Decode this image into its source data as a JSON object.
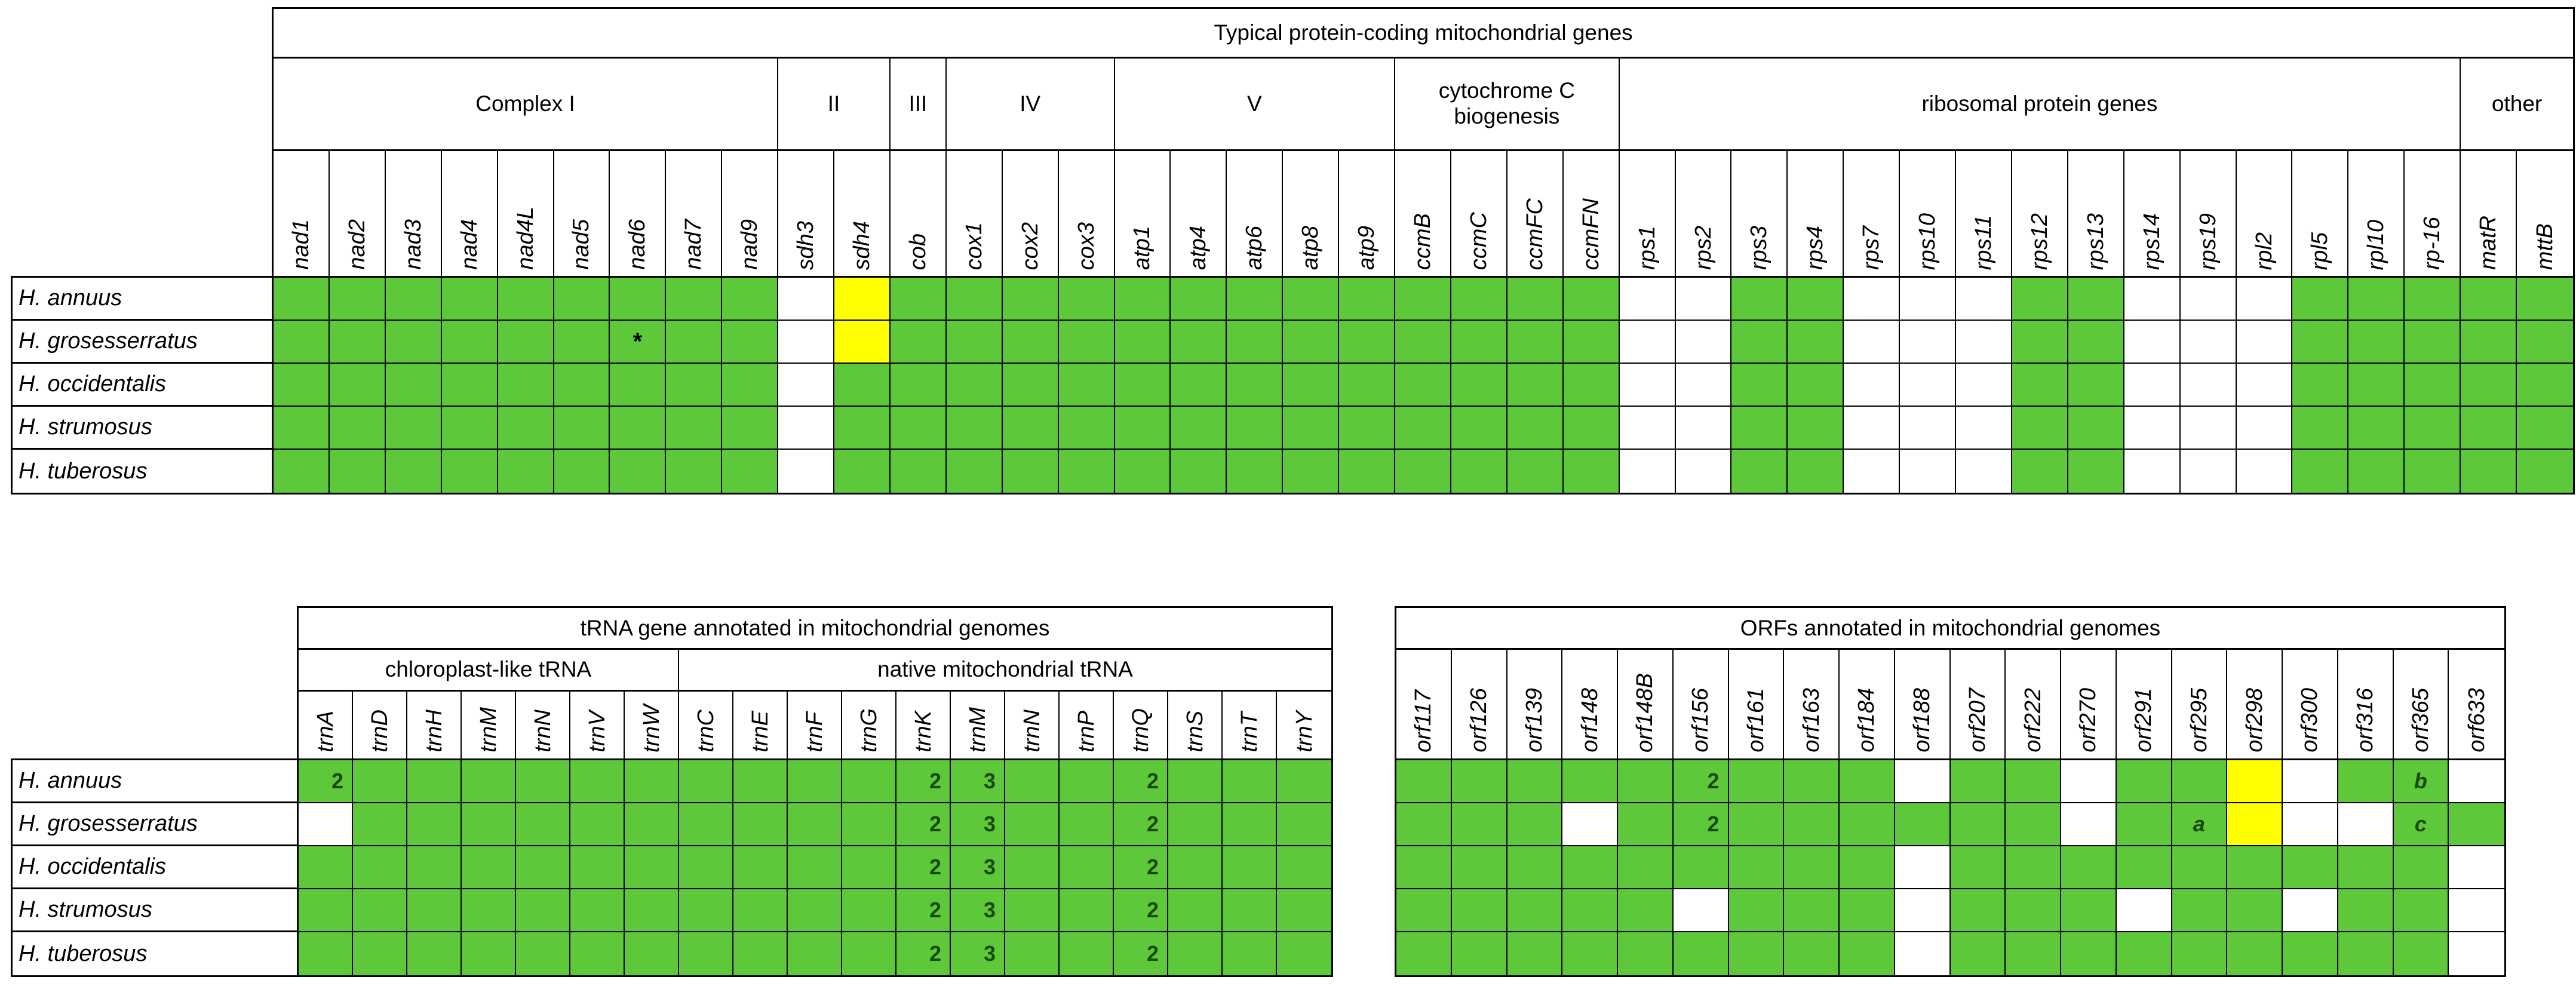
{
  "colors": {
    "present_green": "#5dc83a",
    "highlight_yellow": "#ffff00",
    "absent_white": "#ffffff",
    "grid_border": "#000000",
    "cell_text": "#1a4a08"
  },
  "species": [
    "H. annuus",
    "H. grosesserratus",
    "H. occidentalis",
    "H. strumosus",
    "H. tuberosus"
  ],
  "cell_legend": {
    "G": "gene present (green fill)",
    "W": "gene absent (white fill)",
    "Y": "highlighted presence (yellow fill)",
    "G:n": "present with copy number n shown in cell",
    "G:letter": "present with footnote letter shown in cell",
    "G:*": "present with asterisk annotation"
  },
  "chart_data": [
    {
      "type": "heatmap",
      "title": "Typical protein-coding mitochondrial genes",
      "row_labels": [
        "H. annuus",
        "H. grosesserratus",
        "H. occidentalis",
        "H. strumosus",
        "H. tuberosus"
      ],
      "column_groups": [
        {
          "label": "Complex I",
          "columns": [
            "nad1",
            "nad2",
            "nad3",
            "nad4",
            "nad4L",
            "nad5",
            "nad6",
            "nad7",
            "nad9"
          ]
        },
        {
          "label": "II",
          "columns": [
            "sdh3",
            "sdh4"
          ]
        },
        {
          "label": "III",
          "columns": [
            "cob"
          ]
        },
        {
          "label": "IV",
          "columns": [
            "cox1",
            "cox2",
            "cox3"
          ]
        },
        {
          "label": "V",
          "columns": [
            "atp1",
            "atp4",
            "atp6",
            "atp8",
            "atp9"
          ]
        },
        {
          "label": "cytochrome C biogenesis",
          "columns": [
            "ccmB",
            "ccmC",
            "ccmFC",
            "ccmFN"
          ]
        },
        {
          "label": "ribosomal protein genes",
          "columns": [
            "rps1",
            "rps2",
            "rps3",
            "rps4",
            "rps7",
            "rps10",
            "rps11",
            "rps12",
            "rps13",
            "rps14",
            "rps19",
            "rpl2",
            "rpl5",
            "rpl10",
            "rp-16"
          ]
        },
        {
          "label": "other",
          "columns": [
            "matR",
            "mttB"
          ]
        }
      ],
      "values": [
        [
          "G",
          "G",
          "G",
          "G",
          "G",
          "G",
          "G",
          "G",
          "G",
          "W",
          "Y",
          "G",
          "G",
          "G",
          "G",
          "G",
          "G",
          "G",
          "G",
          "G",
          "G",
          "G",
          "G",
          "G",
          "W",
          "W",
          "G",
          "G",
          "W",
          "W",
          "W",
          "G",
          "G",
          "W",
          "W",
          "W",
          "G",
          "G",
          "G",
          "G",
          "G"
        ],
        [
          "G",
          "G",
          "G",
          "G",
          "G",
          "G",
          "G:*",
          "G",
          "G",
          "W",
          "Y",
          "G",
          "G",
          "G",
          "G",
          "G",
          "G",
          "G",
          "G",
          "G",
          "G",
          "G",
          "G",
          "G",
          "W",
          "W",
          "G",
          "G",
          "W",
          "W",
          "W",
          "G",
          "G",
          "W",
          "W",
          "W",
          "G",
          "G",
          "G",
          "G",
          "G"
        ],
        [
          "G",
          "G",
          "G",
          "G",
          "G",
          "G",
          "G",
          "G",
          "G",
          "W",
          "G",
          "G",
          "G",
          "G",
          "G",
          "G",
          "G",
          "G",
          "G",
          "G",
          "G",
          "G",
          "G",
          "G",
          "W",
          "W",
          "G",
          "G",
          "W",
          "W",
          "W",
          "G",
          "G",
          "W",
          "W",
          "W",
          "G",
          "G",
          "G",
          "G",
          "G"
        ],
        [
          "G",
          "G",
          "G",
          "G",
          "G",
          "G",
          "G",
          "G",
          "G",
          "W",
          "G",
          "G",
          "G",
          "G",
          "G",
          "G",
          "G",
          "G",
          "G",
          "G",
          "G",
          "G",
          "G",
          "G",
          "W",
          "W",
          "G",
          "G",
          "W",
          "W",
          "W",
          "G",
          "G",
          "W",
          "W",
          "W",
          "G",
          "G",
          "G",
          "G",
          "G"
        ],
        [
          "G",
          "G",
          "G",
          "G",
          "G",
          "G",
          "G",
          "G",
          "G",
          "W",
          "G",
          "G",
          "G",
          "G",
          "G",
          "G",
          "G",
          "G",
          "G",
          "G",
          "G",
          "G",
          "G",
          "G",
          "W",
          "W",
          "G",
          "G",
          "W",
          "W",
          "W",
          "G",
          "G",
          "W",
          "W",
          "W",
          "G",
          "G",
          "G",
          "G",
          "G"
        ]
      ]
    },
    {
      "type": "heatmap",
      "title": "tRNA gene annotated in mitochondrial genomes",
      "row_labels": [
        "H. annuus",
        "H. grosesserratus",
        "H. occidentalis",
        "H. strumosus",
        "H. tuberosus"
      ],
      "column_groups": [
        {
          "label": "chloroplast-like tRNA",
          "columns": [
            "trnA",
            "trnD",
            "trnH",
            "trnM",
            "trnN",
            "trnV",
            "trnW"
          ]
        },
        {
          "label": "native mitochondrial tRNA",
          "columns": [
            "trnC",
            "trnE",
            "trnF",
            "trnG",
            "trnK",
            "trnM",
            "trnN",
            "trnP",
            "trnQ",
            "trnS",
            "trnT",
            "trnY"
          ]
        }
      ],
      "values": [
        [
          "G:2",
          "G",
          "G",
          "G",
          "G",
          "G",
          "G",
          "G",
          "G",
          "G",
          "G",
          "G:2",
          "G:3",
          "G",
          "G",
          "G:2",
          "G",
          "G",
          "G"
        ],
        [
          "W",
          "G",
          "G",
          "G",
          "G",
          "G",
          "G",
          "G",
          "G",
          "G",
          "G",
          "G:2",
          "G:3",
          "G",
          "G",
          "G:2",
          "G",
          "G",
          "G"
        ],
        [
          "G",
          "G",
          "G",
          "G",
          "G",
          "G",
          "G",
          "G",
          "G",
          "G",
          "G",
          "G:2",
          "G:3",
          "G",
          "G",
          "G:2",
          "G",
          "G",
          "G"
        ],
        [
          "G",
          "G",
          "G",
          "G",
          "G",
          "G",
          "G",
          "G",
          "G",
          "G",
          "G",
          "G:2",
          "G:3",
          "G",
          "G",
          "G:2",
          "G",
          "G",
          "G"
        ],
        [
          "G",
          "G",
          "G",
          "G",
          "G",
          "G",
          "G",
          "G",
          "G",
          "G",
          "G",
          "G:2",
          "G:3",
          "G",
          "G",
          "G:2",
          "G",
          "G",
          "G"
        ]
      ]
    },
    {
      "type": "heatmap",
      "title": "ORFs annotated in mitochondrial genomes",
      "row_labels": [
        "H. annuus",
        "H. grosesserratus",
        "H. occidentalis",
        "H. strumosus",
        "H. tuberosus"
      ],
      "columns": [
        "orf117",
        "orf126",
        "orf139",
        "orf148",
        "orf148B",
        "orf156",
        "orf161",
        "orf163",
        "orf184",
        "orf188",
        "orf207",
        "orf222",
        "orf270",
        "orf291",
        "orf295",
        "orf298",
        "orf300",
        "orf316",
        "orf365",
        "orf633"
      ],
      "values": [
        [
          "G",
          "G",
          "G",
          "G",
          "G",
          "G:2",
          "G",
          "G",
          "G",
          "W",
          "G",
          "G",
          "W",
          "G",
          "G",
          "Y",
          "W",
          "G",
          "G:b",
          "W"
        ],
        [
          "G",
          "G",
          "G",
          "W",
          "G",
          "G:2",
          "G",
          "G",
          "G",
          "G",
          "G",
          "G",
          "W",
          "G",
          "G:a",
          "Y",
          "W",
          "W",
          "G:c",
          "G"
        ],
        [
          "G",
          "G",
          "G",
          "G",
          "G",
          "G",
          "G",
          "G",
          "G",
          "W",
          "G",
          "G",
          "G",
          "G",
          "G",
          "G",
          "G",
          "G",
          "G",
          "W"
        ],
        [
          "G",
          "G",
          "G",
          "G",
          "G",
          "W",
          "G",
          "G",
          "G",
          "W",
          "G",
          "G",
          "G",
          "W",
          "G",
          "G",
          "W",
          "G",
          "G",
          "W"
        ],
        [
          "G",
          "G",
          "G",
          "G",
          "G",
          "G",
          "G",
          "G",
          "G",
          "W",
          "G",
          "G",
          "G",
          "G",
          "G",
          "G",
          "G",
          "G",
          "G",
          "W"
        ]
      ]
    }
  ]
}
